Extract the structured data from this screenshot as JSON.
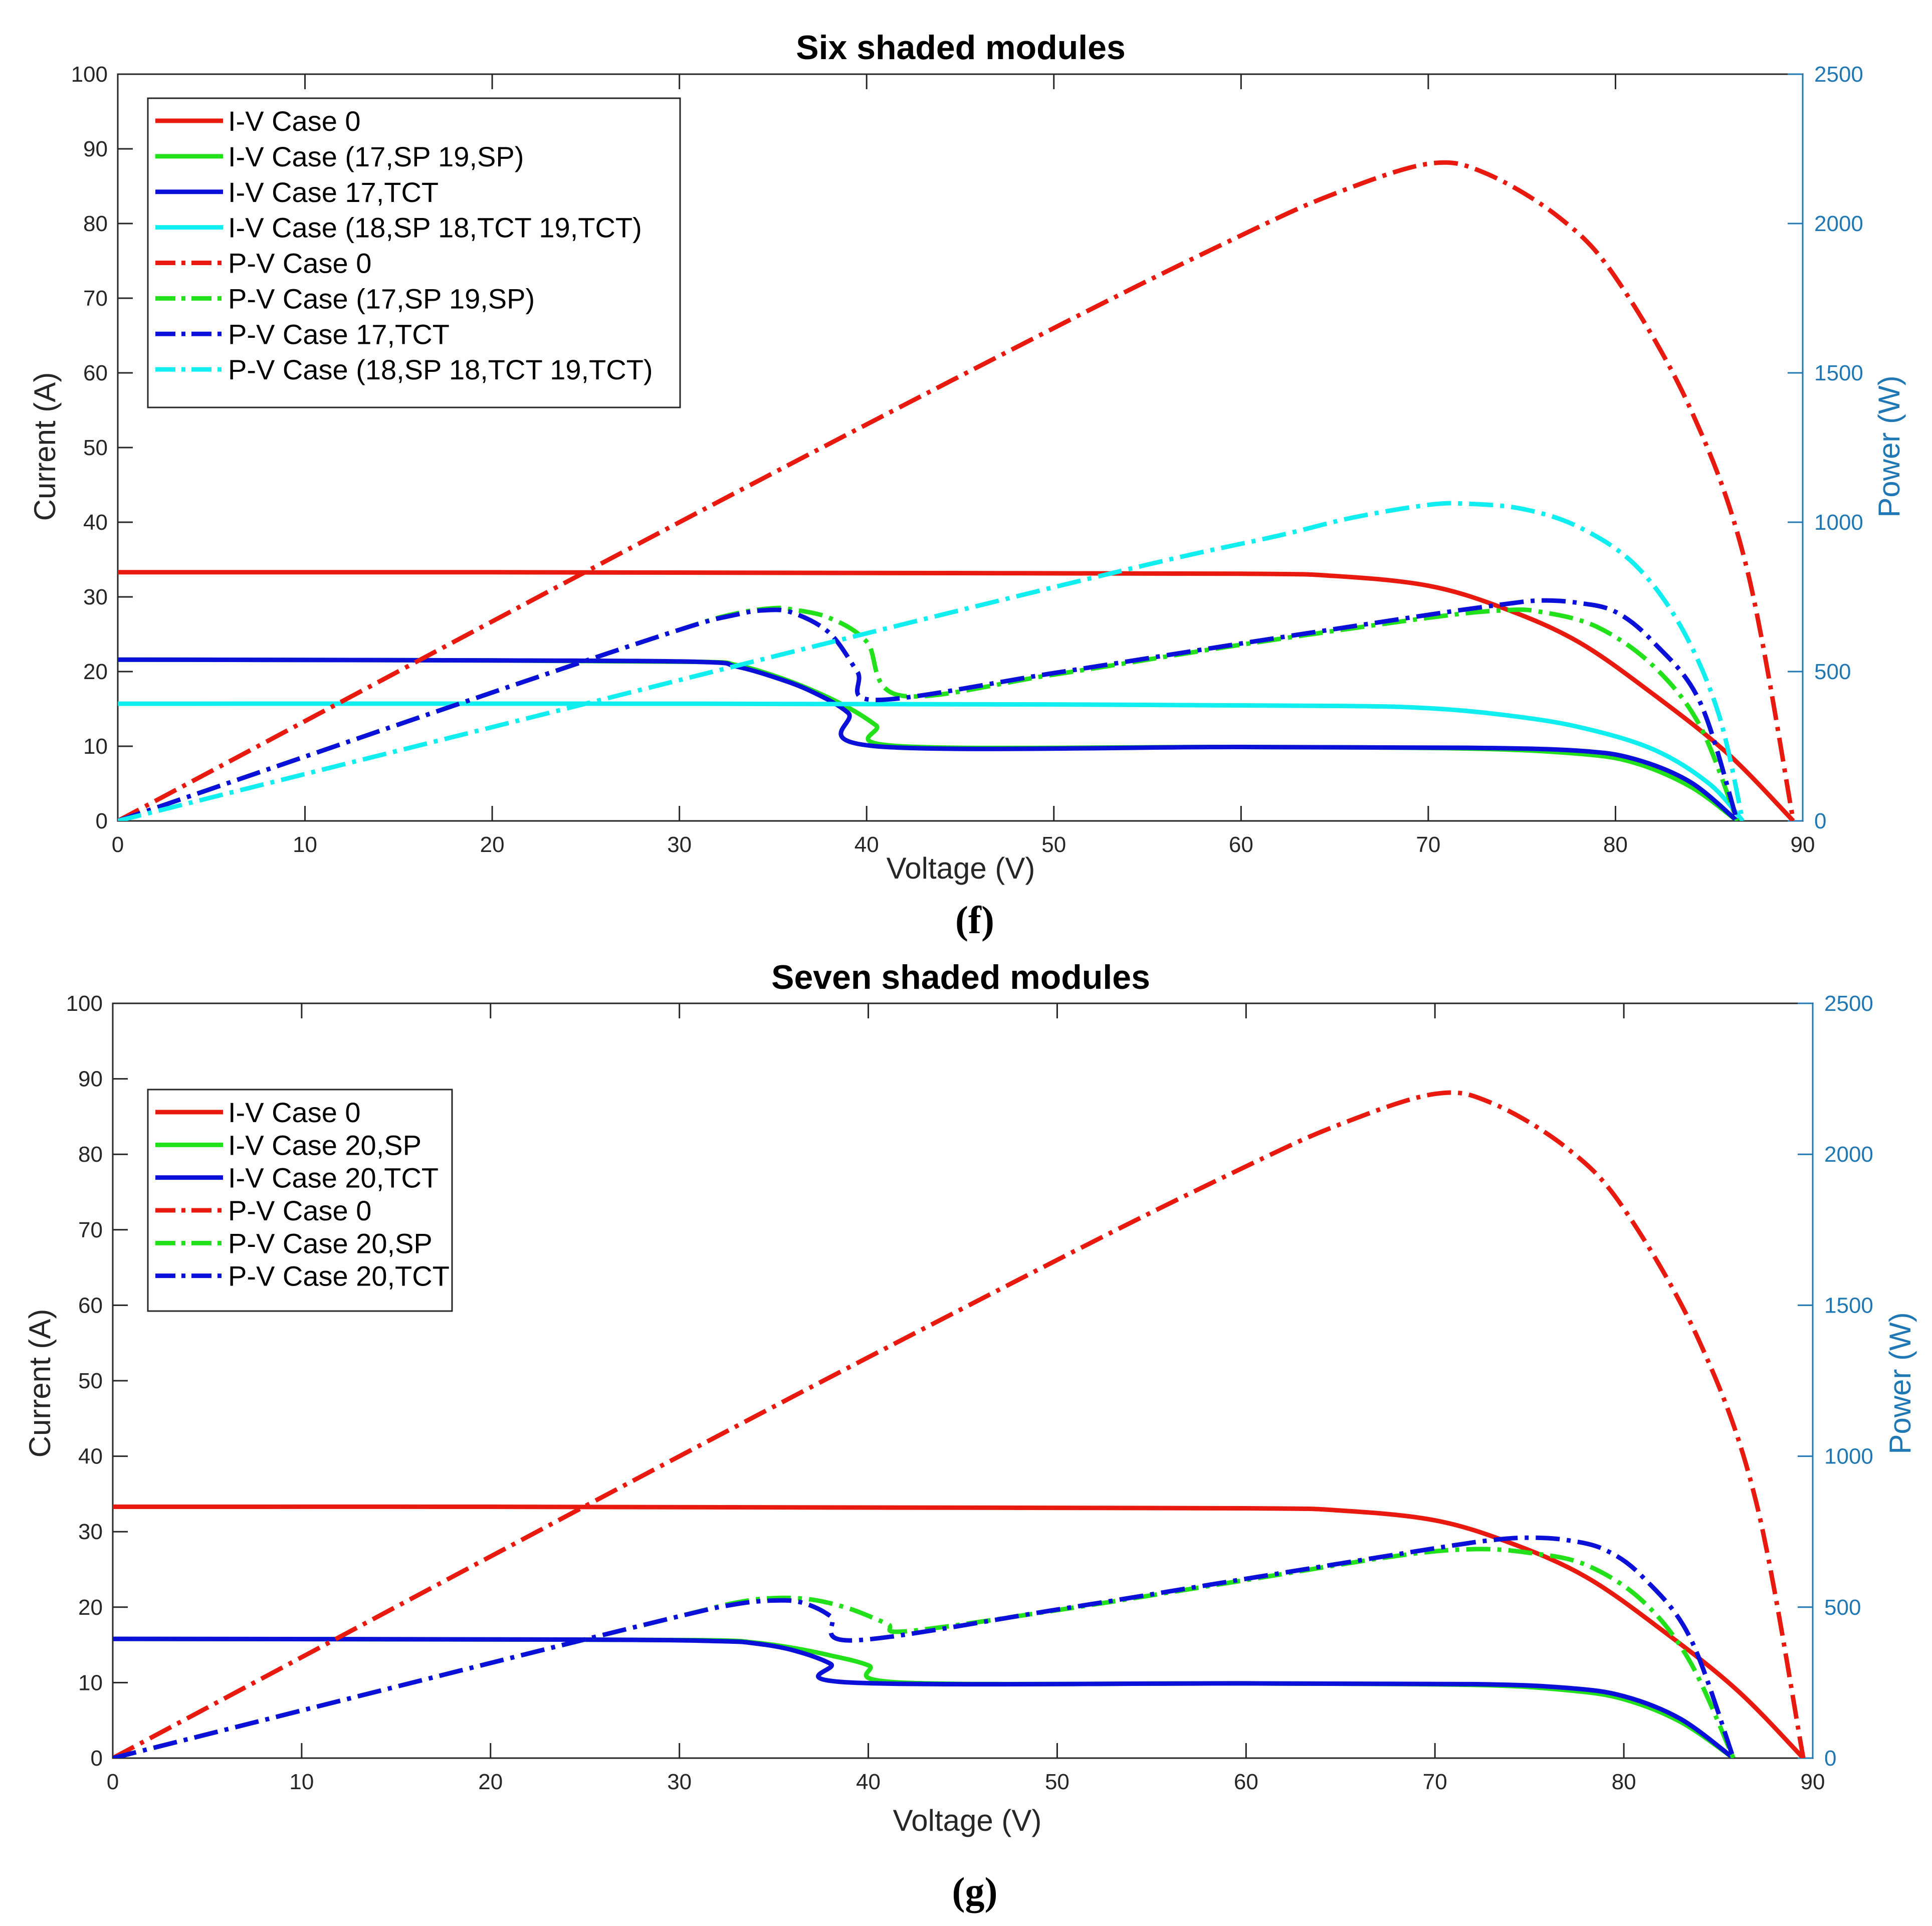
{
  "colors": {
    "red": "#e8190e",
    "green": "#22e01a",
    "blue": "#0a10d8",
    "cyan": "#10eef0",
    "rightAxis": "#1f77b4"
  },
  "chart_data": [
    {
      "type": "line",
      "caption": "(f)",
      "title": "Six shaded modules",
      "xlabel": "Voltage (V)",
      "ylabel": "Current (A)",
      "y2label": "Power (W)",
      "xlim": [
        0,
        90
      ],
      "ylim": [
        0,
        100
      ],
      "y2lim": [
        0,
        2500
      ],
      "xticks": [
        0,
        10,
        20,
        30,
        40,
        50,
        60,
        70,
        80,
        90
      ],
      "yticks": [
        0,
        10,
        20,
        30,
        40,
        50,
        60,
        70,
        80,
        90,
        100
      ],
      "y2ticks": [
        0,
        500,
        1000,
        1500,
        2000,
        2500
      ],
      "legend_position": "top-left",
      "series": [
        {
          "name": "I-V Case 0",
          "axis": "left",
          "style": "solid",
          "color": "red",
          "points": [
            [
              0,
              33.3
            ],
            [
              20,
              33.3
            ],
            [
              40,
              33.2
            ],
            [
              60,
              33.1
            ],
            [
              65,
              32.8
            ],
            [
              70,
              31.5
            ],
            [
              74,
              28.5
            ],
            [
              78,
              24
            ],
            [
              82,
              17
            ],
            [
              86,
              9
            ],
            [
              89.5,
              0
            ]
          ]
        },
        {
          "name": "I-V Case (17,SP 19,SP)",
          "axis": "left",
          "style": "solid",
          "color": "green",
          "points": [
            [
              0,
              21.6
            ],
            [
              20,
              21.5
            ],
            [
              31,
              21.3
            ],
            [
              33,
              20.9
            ],
            [
              35,
              19.5
            ],
            [
              37,
              17.6
            ],
            [
              39,
              15.2
            ],
            [
              40.5,
              12.8
            ],
            [
              41.8,
              10
            ],
            [
              60,
              9.9
            ],
            [
              72,
              9.7
            ],
            [
              78,
              9
            ],
            [
              81,
              7.8
            ],
            [
              84,
              4.6
            ],
            [
              86.5,
              0
            ]
          ]
        },
        {
          "name": "I-V Case 17,TCT",
          "axis": "left",
          "style": "solid",
          "color": "blue",
          "points": [
            [
              0,
              21.6
            ],
            [
              20,
              21.5
            ],
            [
              31,
              21.3
            ],
            [
              33,
              20.7
            ],
            [
              35,
              19.3
            ],
            [
              37,
              17.4
            ],
            [
              39,
              14.5
            ],
            [
              40.5,
              10
            ],
            [
              60,
              9.9
            ],
            [
              72,
              9.8
            ],
            [
              78,
              9.4
            ],
            [
              81,
              8.3
            ],
            [
              84,
              5.2
            ],
            [
              86.5,
              0
            ]
          ]
        },
        {
          "name": "I-V Case (18,SP 18,TCT 19,TCT)",
          "axis": "left",
          "style": "solid",
          "color": "cyan",
          "points": [
            [
              0,
              15.7
            ],
            [
              30,
              15.7
            ],
            [
              50,
              15.6
            ],
            [
              65,
              15.4
            ],
            [
              70,
              15.1
            ],
            [
              74,
              14.2
            ],
            [
              78,
              12.6
            ],
            [
              82,
              9.6
            ],
            [
              85,
              5
            ],
            [
              86.8,
              0
            ]
          ]
        },
        {
          "name": "P-V Case 0",
          "axis": "right",
          "style": "dashdot",
          "color": "red",
          "points": [
            [
              0,
              0
            ],
            [
              30,
              1000
            ],
            [
              50,
              1650
            ],
            [
              60,
              1960
            ],
            [
              65,
              2100
            ],
            [
              70,
              2200
            ],
            [
              73,
              2170
            ],
            [
              77,
              2020
            ],
            [
              80,
              1820
            ],
            [
              84,
              1380
            ],
            [
              87,
              850
            ],
            [
              89.5,
              0
            ]
          ]
        },
        {
          "name": "P-V Case (17,SP 19,SP)",
          "axis": "right",
          "style": "dashdot",
          "color": "green",
          "points": [
            [
              0,
              0
            ],
            [
              20,
              430
            ],
            [
              30,
              640
            ],
            [
              33,
              694
            ],
            [
              35,
              712
            ],
            [
              36,
              708
            ],
            [
              38,
              680
            ],
            [
              40,
              600
            ],
            [
              41.8,
              420
            ],
            [
              50,
              490
            ],
            [
              60,
              590
            ],
            [
              70,
              680
            ],
            [
              74,
              705
            ],
            [
              76,
              700
            ],
            [
              79,
              650
            ],
            [
              82,
              520
            ],
            [
              84.5,
              320
            ],
            [
              86.5,
              0
            ]
          ]
        },
        {
          "name": "P-V Case 17,TCT",
          "axis": "right",
          "style": "dashdot",
          "color": "blue",
          "points": [
            [
              0,
              0
            ],
            [
              20,
              430
            ],
            [
              30,
              640
            ],
            [
              33,
              690
            ],
            [
              34.5,
              705
            ],
            [
              36,
              698
            ],
            [
              38,
              630
            ],
            [
              39.5,
              500
            ],
            [
              40.5,
              405
            ],
            [
              50,
              495
            ],
            [
              60,
              594
            ],
            [
              70,
              690
            ],
            [
              74,
              725
            ],
            [
              76,
              738
            ],
            [
              78,
              730
            ],
            [
              80,
              700
            ],
            [
              82,
              600
            ],
            [
              84.5,
              400
            ],
            [
              86.5,
              0
            ]
          ]
        },
        {
          "name": "P-V Case (18,SP 18,TCT 19,TCT)",
          "axis": "right",
          "style": "dashdot",
          "color": "cyan",
          "points": [
            [
              0,
              0
            ],
            [
              20,
              314
            ],
            [
              40,
              628
            ],
            [
              55,
              858
            ],
            [
              62,
              955
            ],
            [
              66,
              1016
            ],
            [
              70,
              1058
            ],
            [
              72,
              1062
            ],
            [
              75,
              1045
            ],
            [
              78,
              985
            ],
            [
              81,
              860
            ],
            [
              83.5,
              650
            ],
            [
              85.5,
              360
            ],
            [
              86.8,
              0
            ]
          ]
        }
      ]
    },
    {
      "type": "line",
      "caption": "(g)",
      "title": "Seven shaded modules",
      "xlabel": "Voltage (V)",
      "ylabel": "Current (A)",
      "y2label": "Power (W)",
      "xlim": [
        0,
        90
      ],
      "ylim": [
        0,
        100
      ],
      "y2lim": [
        0,
        2500
      ],
      "xticks": [
        0,
        10,
        20,
        30,
        40,
        50,
        60,
        70,
        80,
        90
      ],
      "yticks": [
        0,
        10,
        20,
        30,
        40,
        50,
        60,
        70,
        80,
        90,
        100
      ],
      "y2ticks": [
        0,
        500,
        1000,
        1500,
        2000,
        2500
      ],
      "legend_position": "top-left",
      "series": [
        {
          "name": "I-V Case 0",
          "axis": "left",
          "style": "solid",
          "color": "red",
          "points": [
            [
              0,
              33.3
            ],
            [
              20,
              33.3
            ],
            [
              40,
              33.2
            ],
            [
              60,
              33.1
            ],
            [
              65,
              32.8
            ],
            [
              70,
              31.5
            ],
            [
              74,
              28.5
            ],
            [
              78,
              24
            ],
            [
              82,
              17
            ],
            [
              86,
              9
            ],
            [
              89.5,
              0
            ]
          ]
        },
        {
          "name": "I-V Case 20,SP",
          "axis": "left",
          "style": "solid",
          "color": "green",
          "points": [
            [
              0,
              15.8
            ],
            [
              25,
              15.7
            ],
            [
              32,
              15.6
            ],
            [
              34,
              15.3
            ],
            [
              36,
              14.6
            ],
            [
              38,
              13.6
            ],
            [
              40,
              12.3
            ],
            [
              41.8,
              10
            ],
            [
              60,
              9.9
            ],
            [
              72,
              9.7
            ],
            [
              77,
              9
            ],
            [
              80,
              7.8
            ],
            [
              83,
              4.8
            ],
            [
              85.8,
              0
            ]
          ]
        },
        {
          "name": "I-V Case 20,TCT",
          "axis": "left",
          "style": "solid",
          "color": "blue",
          "points": [
            [
              0,
              15.8
            ],
            [
              25,
              15.7
            ],
            [
              32,
              15.5
            ],
            [
              34,
              15.2
            ],
            [
              36,
              14.3
            ],
            [
              38,
              12.5
            ],
            [
              39.2,
              10
            ],
            [
              60,
              9.9
            ],
            [
              72,
              9.8
            ],
            [
              77,
              9.3
            ],
            [
              80,
              8.2
            ],
            [
              83,
              5.2
            ],
            [
              85.8,
              0
            ]
          ]
        },
        {
          "name": "P-V Case 0",
          "axis": "right",
          "style": "dashdot",
          "color": "red",
          "points": [
            [
              0,
              0
            ],
            [
              30,
              1000
            ],
            [
              50,
              1650
            ],
            [
              60,
              1960
            ],
            [
              65,
              2100
            ],
            [
              70,
              2200
            ],
            [
              73,
              2170
            ],
            [
              77,
              2020
            ],
            [
              80,
              1820
            ],
            [
              84,
              1380
            ],
            [
              87,
              850
            ],
            [
              89.5,
              0
            ]
          ]
        },
        {
          "name": "P-V Case 20,SP",
          "axis": "right",
          "style": "dashdot",
          "color": "green",
          "points": [
            [
              0,
              0
            ],
            [
              20,
              315
            ],
            [
              30,
              470
            ],
            [
              33,
              515
            ],
            [
              35,
              530
            ],
            [
              37,
              525
            ],
            [
              39,
              495
            ],
            [
              41,
              445
            ],
            [
              42,
              420
            ],
            [
              50,
              490
            ],
            [
              60,
              590
            ],
            [
              68,
              670
            ],
            [
              72,
              692
            ],
            [
              75,
              680
            ],
            [
              78,
              640
            ],
            [
              81,
              520
            ],
            [
              83.5,
              320
            ],
            [
              85.8,
              0
            ]
          ]
        },
        {
          "name": "P-V Case 20,TCT",
          "axis": "right",
          "style": "dashdot",
          "color": "blue",
          "points": [
            [
              0,
              0
            ],
            [
              20,
              315
            ],
            [
              30,
              470
            ],
            [
              33,
              510
            ],
            [
              35,
              522
            ],
            [
              36.5,
              515
            ],
            [
              38,
              470
            ],
            [
              39.2,
              390
            ],
            [
              50,
              492
            ],
            [
              60,
              594
            ],
            [
              70,
              695
            ],
            [
              73,
              722
            ],
            [
              75,
              730
            ],
            [
              77,
              722
            ],
            [
              79,
              690
            ],
            [
              81,
              600
            ],
            [
              83.5,
              400
            ],
            [
              85.8,
              0
            ]
          ]
        }
      ]
    }
  ]
}
